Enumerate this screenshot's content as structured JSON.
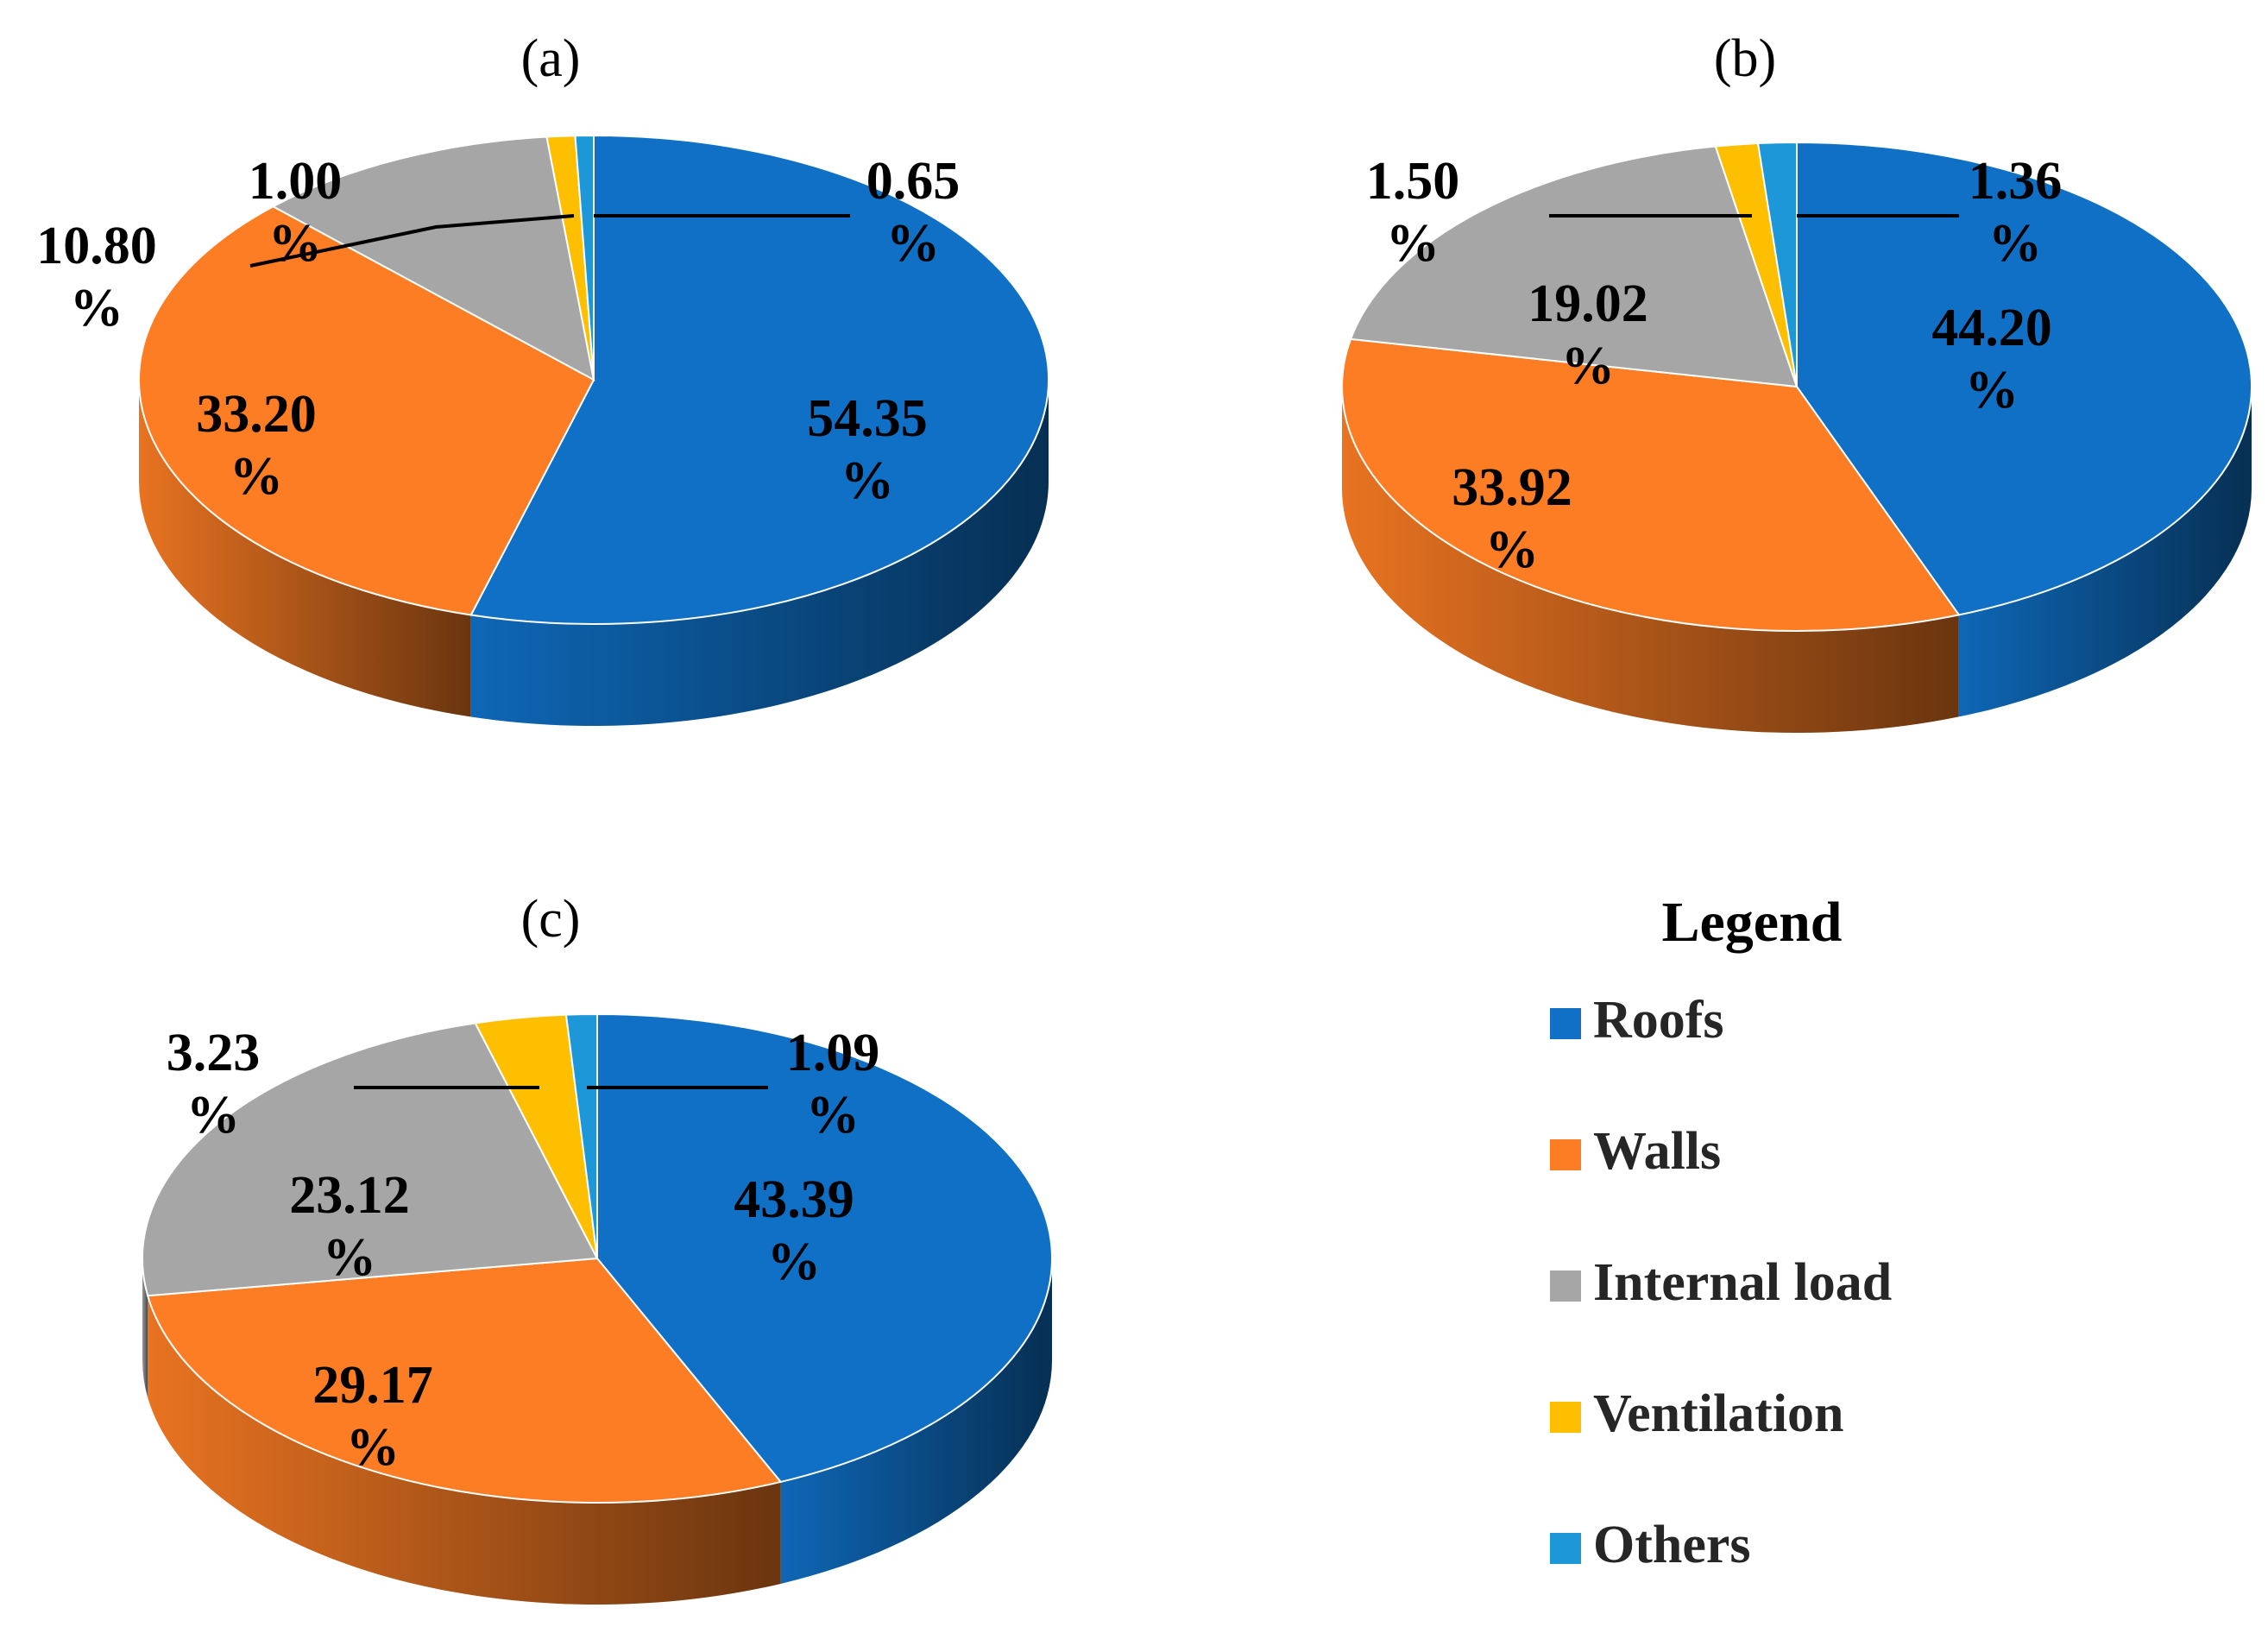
{
  "colors": {
    "Roofs": "#0f70c6",
    "Walls": "#fc7d24",
    "Internal load": "#a6a6a6",
    "Ventilation": "#fdbf00",
    "Others": "#1e97d8"
  },
  "chart_data": [
    {
      "type": "pie",
      "title": "(a)",
      "categories": [
        "Roofs",
        "Walls",
        "Internal load",
        "Ventilation",
        "Others"
      ],
      "values": [
        54.35,
        33.2,
        10.8,
        1.0,
        0.65
      ],
      "labels": [
        {
          "n": "54.35",
          "u": "%"
        },
        {
          "n": "33.20",
          "u": "%"
        },
        {
          "n": "10.80",
          "u": "%"
        },
        {
          "n": "1.00",
          "u": "%"
        },
        {
          "n": "0.65",
          "u": "%"
        }
      ]
    },
    {
      "type": "pie",
      "title": "(b)",
      "categories": [
        "Roofs",
        "Walls",
        "Internal load",
        "Ventilation",
        "Others"
      ],
      "values": [
        44.2,
        33.92,
        19.02,
        1.5,
        1.36
      ],
      "labels": [
        {
          "n": "44.20",
          "u": "%"
        },
        {
          "n": "33.92",
          "u": "%"
        },
        {
          "n": "19.02",
          "u": "%"
        },
        {
          "n": "1.50",
          "u": "%"
        },
        {
          "n": "1.36",
          "u": "%"
        }
      ]
    },
    {
      "type": "pie",
      "title": "(c)",
      "categories": [
        "Roofs",
        "Walls",
        "Internal load",
        "Ventilation",
        "Others"
      ],
      "values": [
        43.39,
        29.17,
        23.12,
        3.23,
        1.09
      ],
      "labels": [
        {
          "n": "43.39",
          "u": "%"
        },
        {
          "n": "29.17",
          "u": "%"
        },
        {
          "n": "23.12",
          "u": "%"
        },
        {
          "n": "3.23",
          "u": "%"
        },
        {
          "n": "1.09",
          "u": "%"
        }
      ]
    }
  ],
  "legend": {
    "title": "Legend",
    "items": [
      "Roofs",
      "Walls",
      "Internal load",
      "Ventilation",
      "Others"
    ]
  }
}
